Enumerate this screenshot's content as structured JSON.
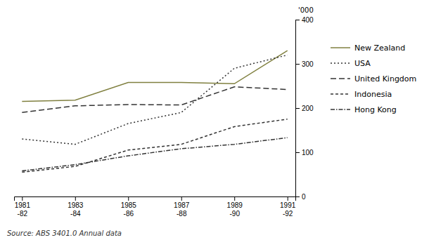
{
  "chart_data": {
    "type": "line",
    "categories": [
      "1981\n-82",
      "1983\n-84",
      "1985\n-86",
      "1987\n-88",
      "1989\n-90",
      "1991\n-92"
    ],
    "series": [
      {
        "name": "New Zealand",
        "color": "#808040",
        "line_style": "solid",
        "values": [
          215,
          218,
          258,
          258,
          255,
          330
        ]
      },
      {
        "name": "USA",
        "color": "#333333",
        "line_style": "dotted",
        "values": [
          130,
          118,
          165,
          190,
          290,
          320
        ]
      },
      {
        "name": "United Kingdom",
        "color": "#333333",
        "line_style": "longdash",
        "values": [
          190,
          205,
          208,
          207,
          248,
          242
        ]
      },
      {
        "name": "Indonesia",
        "color": "#333333",
        "line_style": "shortdash",
        "values": [
          55,
          68,
          105,
          118,
          158,
          175
        ]
      },
      {
        "name": "Hong Kong",
        "color": "#333333",
        "line_style": "dashdot",
        "values": [
          58,
          72,
          92,
          108,
          118,
          133
        ]
      }
    ],
    "ylim": [
      0,
      400
    ],
    "yticks": [
      0,
      100,
      200,
      300,
      400
    ],
    "ylabel": "'000",
    "annotations": [
      "Source: ABS 3401.0 Annual data"
    ],
    "grid": false,
    "legend": "right"
  }
}
